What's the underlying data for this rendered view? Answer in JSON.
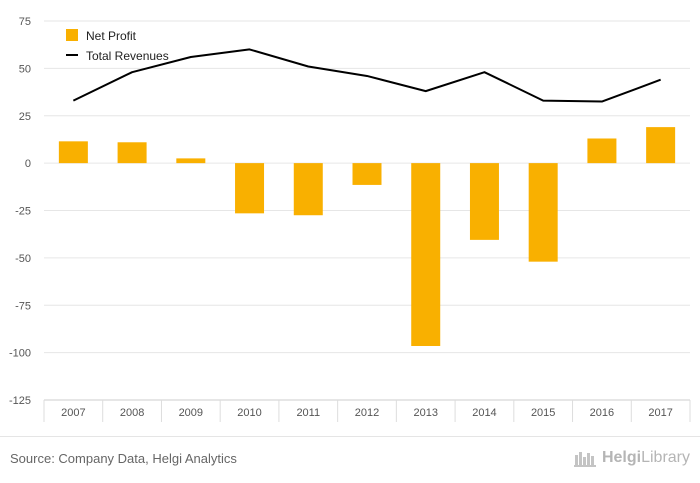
{
  "chart_data": {
    "type": "bar",
    "categories": [
      "2007",
      "2008",
      "2009",
      "2010",
      "2011",
      "2012",
      "2013",
      "2014",
      "2015",
      "2016",
      "2017"
    ],
    "series": [
      {
        "name": "Net Profit",
        "type": "bar",
        "color": "#F9B000",
        "values": [
          11.5,
          11,
          2.5,
          -26.5,
          -27.5,
          -11.5,
          -96.5,
          -40.5,
          -52,
          13,
          19
        ]
      },
      {
        "name": "Total Revenues",
        "type": "line",
        "color": "#000000",
        "values": [
          33,
          48,
          56,
          60,
          51,
          46,
          38,
          48,
          33,
          32.5,
          44
        ]
      }
    ],
    "ylim": [
      -125,
      75
    ],
    "yticks": [
      75,
      50,
      25,
      0,
      -25,
      -50,
      -75,
      -100,
      -125
    ],
    "grid": true,
    "legend_position": "top-left"
  },
  "footer": {
    "source": "Source: Company Data, Helgi Analytics",
    "brand_part1": "Helgi",
    "brand_part2": "Library"
  }
}
